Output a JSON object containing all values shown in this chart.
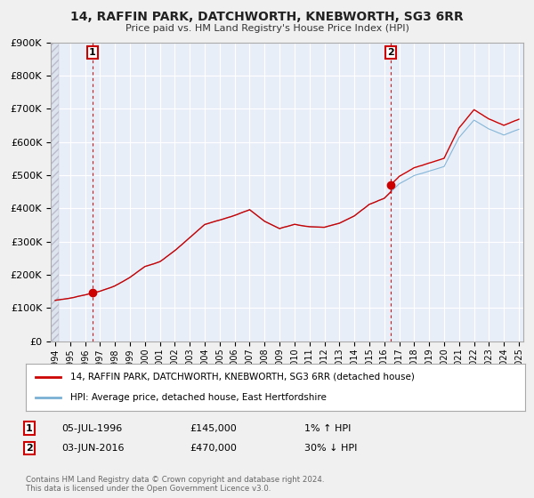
{
  "title": "14, RAFFIN PARK, DATCHWORTH, KNEBWORTH, SG3 6RR",
  "subtitle": "Price paid vs. HM Land Registry's House Price Index (HPI)",
  "ylim": [
    0,
    900000
  ],
  "yticks": [
    0,
    100000,
    200000,
    300000,
    400000,
    500000,
    600000,
    700000,
    800000,
    900000
  ],
  "ytick_labels": [
    "£0",
    "£100K",
    "£200K",
    "£300K",
    "£400K",
    "£500K",
    "£600K",
    "£700K",
    "£800K",
    "£900K"
  ],
  "bg_color": "#f0f0f0",
  "plot_bg_color": "#e8eef8",
  "grid_color": "#ffffff",
  "sale1_x": 1996.5,
  "sale1_y": 145000,
  "sale2_x": 2016.42,
  "sale2_y": 470000,
  "house_color": "#cc0000",
  "hpi_color": "#7ab0d4",
  "legend_house": "14, RAFFIN PARK, DATCHWORTH, KNEBWORTH, SG3 6RR (detached house)",
  "legend_hpi": "HPI: Average price, detached house, East Hertfordshire",
  "annotation1": "05-JUL-1996",
  "annotation1_price": "£145,000",
  "annotation1_hpi": "1% ↑ HPI",
  "annotation2": "03-JUN-2016",
  "annotation2_price": "£470,000",
  "annotation2_hpi": "30% ↓ HPI",
  "footer": "Contains HM Land Registry data © Crown copyright and database right 2024.\nThis data is licensed under the Open Government Licence v3.0.",
  "xmin": 1994.0,
  "xmax": 2025.3
}
